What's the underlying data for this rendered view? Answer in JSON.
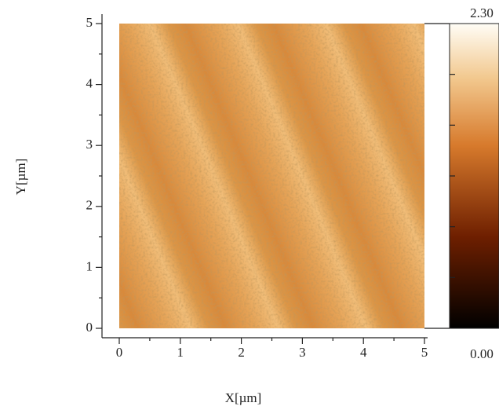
{
  "chart_data": {
    "type": "image",
    "x_label": "X[µm]",
    "y_label": "Y[µm]",
    "xlim": [
      0,
      5
    ],
    "ylim": [
      0,
      5
    ],
    "xticks": [
      0,
      1,
      2,
      3,
      4,
      5
    ],
    "yticks": [
      0,
      1,
      2,
      3,
      4,
      5
    ],
    "clim": [
      0,
      2.3
    ],
    "cticks": [
      {
        "value": 0,
        "label": "0.00"
      },
      {
        "value": 2.3,
        "label": "2.30"
      }
    ]
  }
}
